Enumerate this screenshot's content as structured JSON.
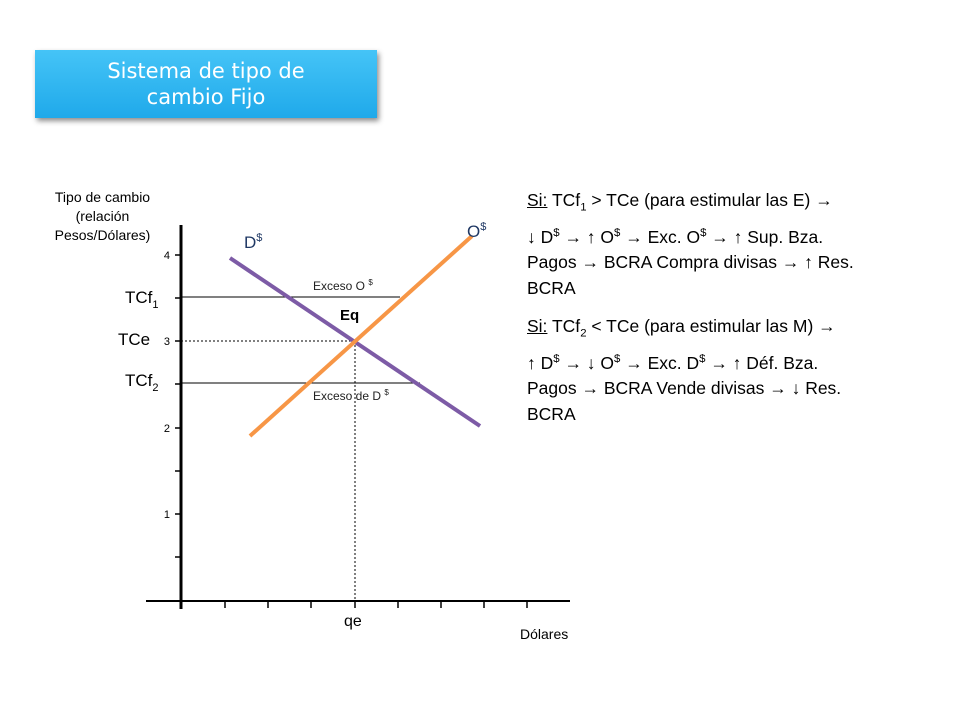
{
  "title": "Sistema de tipo de cambio Fijo",
  "y_axis": {
    "label_lines": [
      "Tipo de cambio",
      "(relación",
      "Pesos/Dólares)"
    ],
    "ticks": [
      "1",
      "2",
      "3",
      "4"
    ]
  },
  "x_axis": {
    "label": "Dólares",
    "qe_label": "qe"
  },
  "levels": {
    "tcf1": {
      "base": "TCf",
      "sub": "1"
    },
    "tce": "TCe",
    "tcf2": {
      "base": "TCf",
      "sub": "2"
    }
  },
  "curves": {
    "demand": {
      "base": "D",
      "sup": "$",
      "color": "#7d5ba6"
    },
    "supply": {
      "base": "O",
      "sup": "$",
      "color": "#f79646"
    }
  },
  "annotations": {
    "eq": "Eq",
    "excess_supply": {
      "text": "Exceso O ",
      "sup": "$"
    },
    "excess_demand": {
      "text": "Exceso de D ",
      "sup": "$"
    }
  },
  "explanation": {
    "case1": {
      "si": "Si:",
      "line1_a": " TCf",
      "line1_sub": "1",
      "line1_b": " > TCe (para estimular las E) →",
      "line2_a": "↓ D",
      "line2_sup1": "$",
      "line2_b": " → ↑ O",
      "line2_sup2": "$",
      "line2_c": " →  Exc. O",
      "line2_sup3": "$",
      "line2_d": " → ↑ Sup. Bza.",
      "line3": "Pagos → BCRA Compra divisas → ↑ Res.",
      "line4": "BCRA"
    },
    "case2": {
      "si": "Si:",
      "line1_a": " TCf",
      "line1_sub": "2",
      "line1_b": " < TCe (para estimular las M) →",
      "line2_a": "↑ D",
      "line2_sup1": "$",
      "line2_b": " → ↓ O",
      "line2_sup2": "$",
      "line2_c": " →  Exc. D",
      "line2_sup3": "$",
      "line2_d": " → ↑ Déf. Bza.",
      "line3": "Pagos → BCRA Vende divisas → ↓ Res.",
      "line4": "BCRA"
    }
  },
  "colors": {
    "title_bg": "#29b6f0",
    "axis": "#000000"
  }
}
